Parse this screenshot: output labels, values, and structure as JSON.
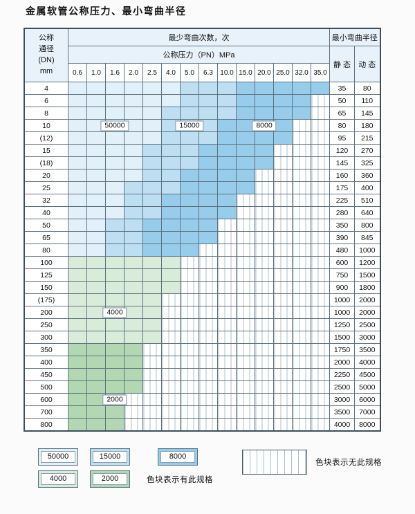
{
  "page": {
    "title": "金属软管公称压力、最小弯曲半径"
  },
  "table": {
    "header": {
      "dn_lines": [
        "公称",
        "通径",
        "(DN)",
        "mm"
      ],
      "cycles_title": "最少弯曲次数，次",
      "pressure_title": "公称压力（PN）MPa",
      "radius_title": "最小弯曲半径",
      "static_label": "静 态",
      "dynamic_label": "动 态"
    }
  },
  "legend": {
    "blue": [
      {
        "label": "50000",
        "color": "#e2f0fa"
      },
      {
        "label": "15000",
        "color": "#bedff2"
      },
      {
        "label": "8000",
        "color": "#97ccea"
      }
    ],
    "green": [
      {
        "label": "4000",
        "color": "#d9ecd9"
      },
      {
        "label": "2000",
        "color": "#b2d7b2"
      }
    ],
    "has_spec_text": "色块表示有此规格",
    "no_spec_text": "色块表示无此规格"
  },
  "chart_data": {
    "type": "table",
    "title": "金属软管公称压力、最小弯曲半径",
    "row_header": "公称通径(DN) mm",
    "cycles_header": "最少弯曲次数，次",
    "pressure_header": "公称压力（PN）MPa",
    "radius_header": "最小弯曲半径",
    "value_columns": [
      "静态",
      "动态"
    ],
    "pressures": [
      "0.6",
      "1.0",
      "1.6",
      "2.0",
      "2.5",
      "4.0",
      "5.0",
      "6.3",
      "10.0",
      "15.0",
      "20.0",
      "25.0",
      "32.0",
      "35.0"
    ],
    "cycle_bands_blue": [
      50000,
      15000,
      8000
    ],
    "cycle_bands_green": [
      4000,
      2000
    ],
    "rows": [
      {
        "dn": "4",
        "static": "35",
        "dynamic": "80",
        "zone": "blue",
        "e50": 6,
        "e15": 9,
        "end": 14
      },
      {
        "dn": "6",
        "static": "50",
        "dynamic": "110",
        "zone": "blue",
        "e50": 6,
        "e15": 9,
        "end": 13
      },
      {
        "dn": "8",
        "static": "65",
        "dynamic": "145",
        "zone": "blue",
        "e50": 5,
        "e15": 9,
        "end": 13
      },
      {
        "dn": "10",
        "static": "80",
        "dynamic": "180",
        "zone": "blue",
        "e50": 5,
        "e15": 8,
        "end": 12
      },
      {
        "dn": "(12)",
        "static": "95",
        "dynamic": "215",
        "zone": "blue",
        "e50": 5,
        "e15": 8,
        "end": 12
      },
      {
        "dn": "15",
        "static": "120",
        "dynamic": "270",
        "zone": "blue",
        "e50": 4,
        "e15": 7,
        "end": 11
      },
      {
        "dn": "(18)",
        "static": "145",
        "dynamic": "325",
        "zone": "blue",
        "e50": 4,
        "e15": 7,
        "end": 11
      },
      {
        "dn": "20",
        "static": "160",
        "dynamic": "360",
        "zone": "blue",
        "e50": 4,
        "e15": 6,
        "end": 10
      },
      {
        "dn": "25",
        "static": "175",
        "dynamic": "400",
        "zone": "blue",
        "e50": 3,
        "e15": 6,
        "end": 10
      },
      {
        "dn": "32",
        "static": "225",
        "dynamic": "510",
        "zone": "blue",
        "e50": 3,
        "e15": 5,
        "end": 9
      },
      {
        "dn": "40",
        "static": "280",
        "dynamic": "640",
        "zone": "blue",
        "e50": 3,
        "e15": 5,
        "end": 9
      },
      {
        "dn": "50",
        "static": "350",
        "dynamic": "800",
        "zone": "blue",
        "e50": 2,
        "e15": 4,
        "end": 8
      },
      {
        "dn": "65",
        "static": "390",
        "dynamic": "845",
        "zone": "blue",
        "e50": 2,
        "e15": 4,
        "end": 8
      },
      {
        "dn": "80",
        "static": "480",
        "dynamic": "1000",
        "zone": "blue",
        "e50": 2,
        "e15": 4,
        "end": 7
      },
      {
        "dn": "100",
        "static": "600",
        "dynamic": "1200",
        "zone": "green",
        "band": "4000",
        "end": 6
      },
      {
        "dn": "125",
        "static": "750",
        "dynamic": "1500",
        "zone": "green",
        "band": "4000",
        "end": 6
      },
      {
        "dn": "150",
        "static": "900",
        "dynamic": "1800",
        "zone": "green",
        "band": "4000",
        "end": 6
      },
      {
        "dn": "(175)",
        "static": "1000",
        "dynamic": "2000",
        "zone": "green",
        "band": "4000",
        "end": 5
      },
      {
        "dn": "200",
        "static": "1000",
        "dynamic": "2000",
        "zone": "green",
        "band": "4000",
        "end": 5
      },
      {
        "dn": "250",
        "static": "1250",
        "dynamic": "2500",
        "zone": "green",
        "band": "4000",
        "end": 5
      },
      {
        "dn": "300",
        "static": "1500",
        "dynamic": "3000",
        "zone": "green",
        "band": "4000",
        "end": 5
      },
      {
        "dn": "350",
        "static": "1750",
        "dynamic": "3500",
        "zone": "green",
        "band": "2000",
        "end": 4
      },
      {
        "dn": "400",
        "static": "2000",
        "dynamic": "4000",
        "zone": "green",
        "band": "2000",
        "end": 4
      },
      {
        "dn": "450",
        "static": "2250",
        "dynamic": "4500",
        "zone": "green",
        "band": "2000",
        "end": 4
      },
      {
        "dn": "500",
        "static": "2500",
        "dynamic": "5000",
        "zone": "green",
        "band": "2000",
        "end": 4
      },
      {
        "dn": "600",
        "static": "3000",
        "dynamic": "6000",
        "zone": "green",
        "band": "2000",
        "end": 3
      },
      {
        "dn": "700",
        "static": "3500",
        "dynamic": "7000",
        "zone": "green",
        "band": "2000",
        "end": 3
      },
      {
        "dn": "800",
        "static": "4000",
        "dynamic": "8000",
        "zone": "green",
        "band": "2000",
        "end": 3
      }
    ],
    "overlays": [
      {
        "label": "50000",
        "dn": "10",
        "col": 2
      },
      {
        "label": "15000",
        "dn": "10",
        "col": 6
      },
      {
        "label": "8000",
        "dn": "10",
        "col": 10
      },
      {
        "label": "4000",
        "dn": "200",
        "col": 2
      },
      {
        "label": "2000",
        "dn": "600",
        "col": 2
      }
    ]
  }
}
